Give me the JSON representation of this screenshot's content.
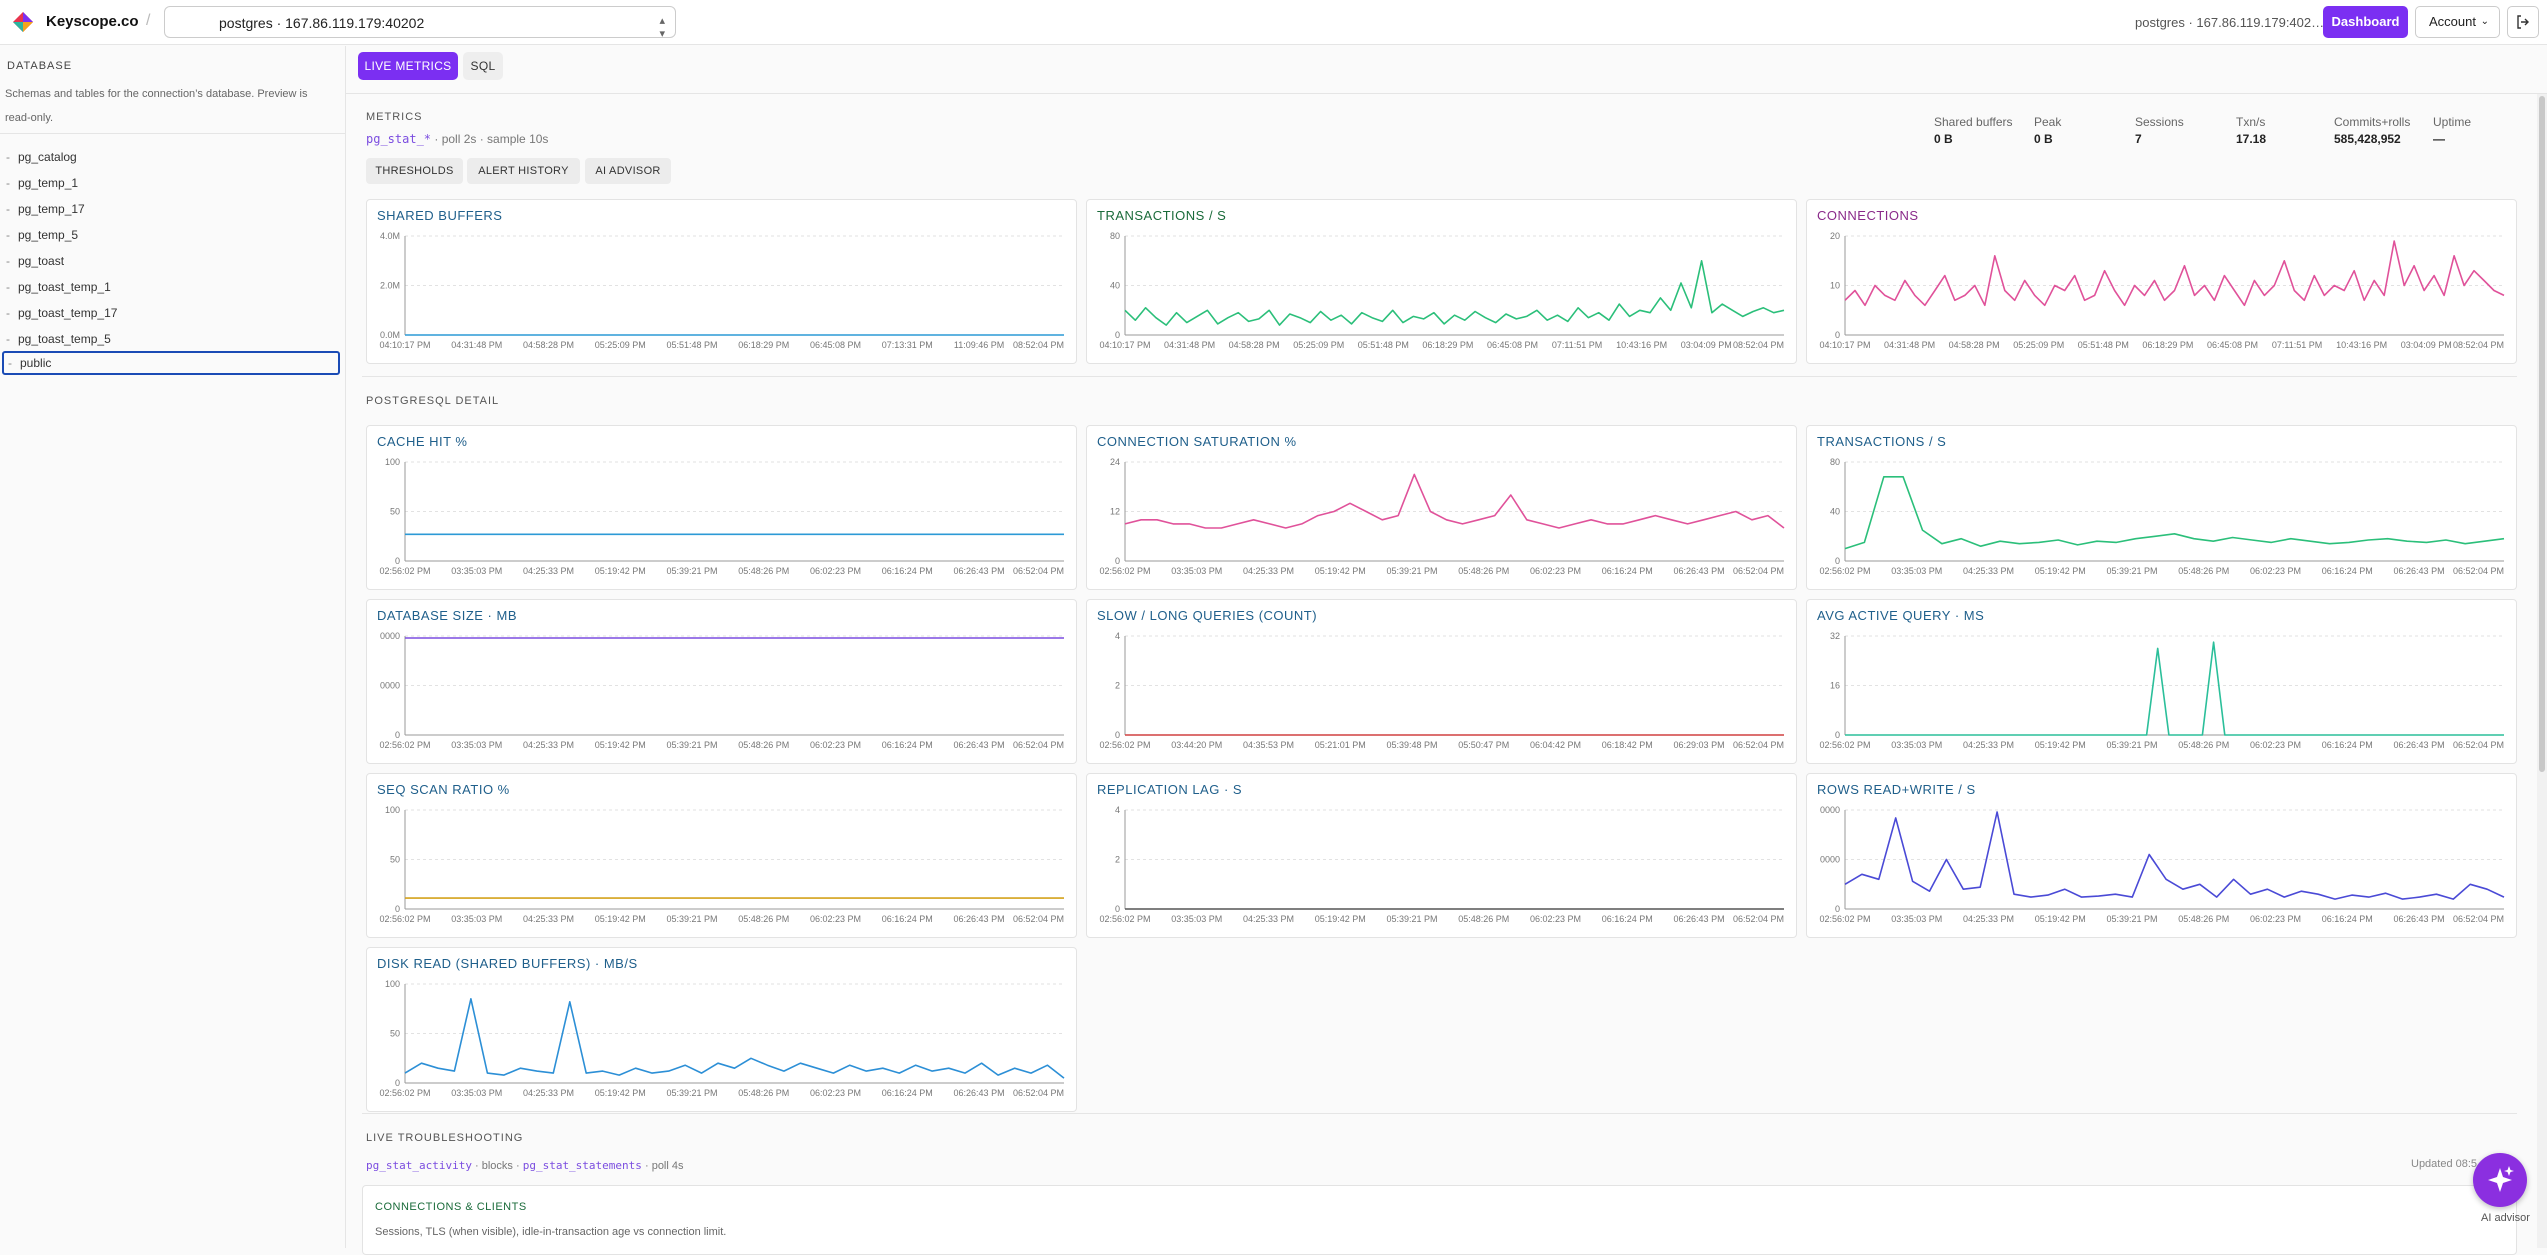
{
  "header": {
    "brand": "Keyscope.co",
    "separator": "/",
    "connection_value": "postgres · 167.86.119.179:40202",
    "connection_info": "postgres · 167.86.119.179:402…",
    "dashboard_label": "Dashboard",
    "account_label": "Account"
  },
  "sidebar": {
    "title": "DATABASE",
    "description": "Schemas and tables for the connection’s database. Preview is read-only.",
    "items": [
      {
        "label": "pg_catalog"
      },
      {
        "label": "pg_temp_1"
      },
      {
        "label": "pg_temp_17"
      },
      {
        "label": "pg_temp_5"
      },
      {
        "label": "pg_toast"
      },
      {
        "label": "pg_toast_temp_1"
      },
      {
        "label": "pg_toast_temp_17"
      },
      {
        "label": "pg_toast_temp_5"
      },
      {
        "label": "public",
        "selected": true
      }
    ]
  },
  "tabs": {
    "live": "LIVE METRICS",
    "sql": "SQL"
  },
  "metrics": {
    "title": "METRICS",
    "source_link": "pg_stat_*",
    "source_rest": " · poll 2s · sample 10s",
    "buttons": [
      "THRESHOLDS",
      "ALERT HISTORY",
      "AI ADVISOR"
    ],
    "stats": [
      {
        "label": "Shared buffers",
        "value": "0 B"
      },
      {
        "label": "Peak",
        "value": "0 B"
      },
      {
        "label": "Sessions",
        "value": "7"
      },
      {
        "label": "Txn/s",
        "value": "17.18"
      },
      {
        "label": "Commits+rolls",
        "value": "585,428,952"
      },
      {
        "label": "Uptime",
        "value": "—"
      }
    ]
  },
  "detail_title": "POSTGRESQL DETAIL",
  "troubleshooting": {
    "title": "LIVE TROUBLESHOOTING",
    "link1": "pg_stat_activity",
    "mid": " · blocks · ",
    "link2": "pg_stat_statements",
    "rest": " · poll 4s",
    "updated": "Updated 08:5…",
    "card_title": "CONNECTIONS & CLIENTS",
    "card_desc": "Sessions, TLS (when visible), idle-in-transaction age vs connection limit."
  },
  "ai_advisor_label": "AI advisor",
  "colors": {
    "accent": "#7b2ff2",
    "title_blue": "#1f5f8b",
    "title_green": "#1a6b3a",
    "title_purple": "#8a2a8a"
  },
  "chart_data": [
    {
      "type": "line",
      "title": "SHARED BUFFERS",
      "color": "#2c9ad6",
      "yticks": [
        "4.0M",
        "2.0M",
        "0.0M"
      ],
      "ylim": [
        0,
        4000000
      ],
      "xticks": [
        "04:10:17 PM",
        "04:31:48 PM",
        "04:58:28 PM",
        "05:25:09 PM",
        "05:51:48 PM",
        "06:18:29 PM",
        "06:45:08 PM",
        "07:13:31 PM",
        "11:09:46 PM",
        "08:52:04 PM"
      ],
      "values": [
        0,
        0,
        0,
        0,
        0,
        0,
        0,
        0,
        0,
        0,
        0,
        0,
        0,
        0,
        0,
        0,
        0,
        0,
        0,
        0
      ]
    },
    {
      "type": "line",
      "title": "TRANSACTIONS / S",
      "color": "#2bbf7a",
      "yticks": [
        "80",
        "40",
        "0"
      ],
      "ylim": [
        0,
        80
      ],
      "xticks": [
        "04:10:17 PM",
        "04:31:48 PM",
        "04:58:28 PM",
        "05:25:09 PM",
        "05:51:48 PM",
        "06:18:29 PM",
        "06:45:08 PM",
        "07:11:51 PM",
        "10:43:16 PM",
        "03:04:09 PM",
        "08:52:04 PM"
      ],
      "values": [
        20,
        12,
        22,
        14,
        8,
        18,
        10,
        15,
        20,
        9,
        14,
        18,
        11,
        13,
        20,
        8,
        17,
        14,
        10,
        19,
        12,
        16,
        9,
        18,
        14,
        11,
        20,
        10,
        15,
        13,
        18,
        9,
        16,
        12,
        19,
        14,
        10,
        17,
        13,
        15,
        20,
        12,
        16,
        11,
        22,
        14,
        18,
        12,
        25,
        15,
        20,
        18,
        30,
        20,
        42,
        22,
        60,
        18,
        25,
        20,
        15,
        19,
        22,
        18,
        20
      ]
    },
    {
      "type": "line",
      "title": "CONNECTIONS",
      "color": "#e0529a",
      "yticks": [
        "20",
        "10",
        "0"
      ],
      "ylim": [
        0,
        20
      ],
      "xticks": [
        "04:10:17 PM",
        "04:31:48 PM",
        "04:58:28 PM",
        "05:25:09 PM",
        "05:51:48 PM",
        "06:18:29 PM",
        "06:45:08 PM",
        "07:11:51 PM",
        "10:43:16 PM",
        "03:04:09 PM",
        "08:52:04 PM"
      ],
      "values": [
        7,
        9,
        6,
        10,
        8,
        7,
        11,
        8,
        6,
        9,
        12,
        7,
        8,
        10,
        6,
        16,
        9,
        7,
        11,
        8,
        6,
        10,
        9,
        12,
        7,
        8,
        13,
        9,
        6,
        10,
        8,
        11,
        7,
        9,
        14,
        8,
        10,
        7,
        12,
        9,
        6,
        11,
        8,
        10,
        15,
        9,
        7,
        12,
        8,
        10,
        9,
        13,
        7,
        11,
        8,
        19,
        10,
        14,
        9,
        12,
        8,
        16,
        10,
        13,
        11,
        9,
        8
      ]
    },
    {
      "type": "line",
      "title": "CACHE HIT %",
      "color": "#2c9ad6",
      "yticks": [
        "100",
        "50",
        "0"
      ],
      "ylim": [
        0,
        100
      ],
      "xticks": [
        "02:56:02 PM",
        "03:35:03 PM",
        "04:25:33 PM",
        "05:19:42 PM",
        "05:39:21 PM",
        "05:48:26 PM",
        "06:02:23 PM",
        "06:16:24 PM",
        "06:26:43 PM",
        "06:52:04 PM"
      ],
      "values": [
        27,
        27,
        27,
        27,
        27,
        27,
        27,
        27,
        27,
        27,
        27,
        27,
        27,
        27,
        27,
        27,
        27,
        27,
        27,
        27
      ]
    },
    {
      "type": "line",
      "title": "CONNECTION SATURATION %",
      "color": "#e0529a",
      "yticks": [
        "24",
        "12",
        "0"
      ],
      "ylim": [
        0,
        24
      ],
      "xticks": [
        "02:56:02 PM",
        "03:35:03 PM",
        "04:25:33 PM",
        "05:19:42 PM",
        "05:39:21 PM",
        "05:48:26 PM",
        "06:02:23 PM",
        "06:16:24 PM",
        "06:26:43 PM",
        "06:52:04 PM"
      ],
      "values": [
        9,
        10,
        10,
        9,
        9,
        8,
        8,
        9,
        10,
        9,
        8,
        9,
        11,
        12,
        14,
        12,
        10,
        11,
        21,
        12,
        10,
        9,
        10,
        11,
        16,
        10,
        9,
        8,
        9,
        10,
        9,
        9,
        10,
        11,
        10,
        9,
        10,
        11,
        12,
        10,
        11,
        8
      ]
    },
    {
      "type": "line",
      "title": "TRANSACTIONS / S",
      "color": "#2bbf7a",
      "yticks": [
        "80",
        "40",
        "0"
      ],
      "ylim": [
        0,
        80
      ],
      "xticks": [
        "02:56:02 PM",
        "03:35:03 PM",
        "04:25:33 PM",
        "05:19:42 PM",
        "05:39:21 PM",
        "05:48:26 PM",
        "06:02:23 PM",
        "06:16:24 PM",
        "06:26:43 PM",
        "06:52:04 PM"
      ],
      "values": [
        10,
        15,
        68,
        68,
        25,
        14,
        18,
        12,
        16,
        14,
        15,
        17,
        13,
        16,
        15,
        18,
        20,
        22,
        18,
        16,
        19,
        17,
        15,
        18,
        16,
        14,
        15,
        17,
        18,
        16,
        15,
        17,
        14,
        16,
        18
      ]
    },
    {
      "type": "line",
      "title": "DATABASE SIZE · MB",
      "color": "#7b4de0",
      "yticks": [
        "0000",
        "0000",
        "0"
      ],
      "ylim": [
        0,
        100
      ],
      "xticks": [
        "02:56:02 PM",
        "03:35:03 PM",
        "04:25:33 PM",
        "05:19:42 PM",
        "05:39:21 PM",
        "05:48:26 PM",
        "06:02:23 PM",
        "06:16:24 PM",
        "06:26:43 PM",
        "06:52:04 PM"
      ],
      "values": [
        98,
        98,
        98,
        98,
        98,
        98,
        98,
        98,
        98,
        98,
        98,
        98,
        98,
        98,
        98,
        98,
        98,
        98,
        98,
        98
      ]
    },
    {
      "type": "line",
      "title": "SLOW / LONG QUERIES (COUNT)",
      "color": "#d04040",
      "yticks": [
        "4",
        "2",
        "0"
      ],
      "ylim": [
        0,
        4
      ],
      "xticks": [
        "02:56:02 PM",
        "03:44:20 PM",
        "04:35:53 PM",
        "05:21:01 PM",
        "05:39:48 PM",
        "05:50:47 PM",
        "06:04:42 PM",
        "06:18:42 PM",
        "06:29:03 PM",
        "06:52:04 PM"
      ],
      "values": [
        0,
        0,
        0,
        0,
        0,
        0,
        0,
        0,
        0,
        0,
        0,
        0,
        0,
        0,
        0,
        0,
        0,
        0,
        0,
        0
      ]
    },
    {
      "type": "line",
      "title": "AVG ACTIVE QUERY · MS",
      "color": "#2bbf9a",
      "yticks": [
        "32",
        "16",
        "0"
      ],
      "ylim": [
        0,
        32
      ],
      "xticks": [
        "02:56:02 PM",
        "03:35:03 PM",
        "04:25:33 PM",
        "05:19:42 PM",
        "05:39:21 PM",
        "05:48:26 PM",
        "06:02:23 PM",
        "06:16:24 PM",
        "06:26:43 PM",
        "06:52:04 PM"
      ],
      "values": [
        0,
        0,
        0,
        0,
        0,
        0,
        0,
        0,
        0,
        0,
        0,
        0,
        0,
        0,
        0,
        0,
        0,
        0,
        0,
        0,
        0,
        0,
        0,
        0,
        0,
        0,
        0,
        0,
        28,
        0,
        0,
        0,
        0,
        30,
        0,
        0,
        0,
        0,
        0,
        0,
        0,
        0,
        0,
        0,
        0,
        0,
        0,
        0,
        0,
        0,
        0,
        0,
        0,
        0,
        0,
        0,
        0,
        0,
        0,
        0
      ]
    },
    {
      "type": "line",
      "title": "SEQ SCAN RATIO %",
      "color": "#d4a21c",
      "yticks": [
        "100",
        "50",
        "0"
      ],
      "ylim": [
        0,
        100
      ],
      "xticks": [
        "02:56:02 PM",
        "03:35:03 PM",
        "04:25:33 PM",
        "05:19:42 PM",
        "05:39:21 PM",
        "05:48:26 PM",
        "06:02:23 PM",
        "06:16:24 PM",
        "06:26:43 PM",
        "06:52:04 PM"
      ],
      "values": [
        11,
        11,
        11,
        11,
        11,
        11,
        11,
        11,
        11,
        11,
        11,
        11,
        11,
        11,
        11,
        11,
        11,
        11,
        11,
        11
      ]
    },
    {
      "type": "line",
      "title": "REPLICATION LAG · S",
      "color": "#555555",
      "yticks": [
        "4",
        "2",
        "0"
      ],
      "ylim": [
        0,
        4
      ],
      "xticks": [
        "02:56:02 PM",
        "03:35:03 PM",
        "04:25:33 PM",
        "05:19:42 PM",
        "05:39:21 PM",
        "05:48:26 PM",
        "06:02:23 PM",
        "06:16:24 PM",
        "06:26:43 PM",
        "06:52:04 PM"
      ],
      "values": [
        0,
        0,
        0,
        0,
        0,
        0,
        0,
        0,
        0,
        0,
        0,
        0,
        0,
        0,
        0,
        0,
        0,
        0,
        0,
        0
      ]
    },
    {
      "type": "line",
      "title": "ROWS READ+WRITE / S",
      "color": "#4a4ad6",
      "yticks": [
        "0000",
        "0000",
        "0"
      ],
      "ylim": [
        0,
        100
      ],
      "xticks": [
        "02:56:02 PM",
        "03:35:03 PM",
        "04:25:33 PM",
        "05:19:42 PM",
        "05:39:21 PM",
        "05:48:26 PM",
        "06:02:23 PM",
        "06:16:24 PM",
        "06:26:43 PM",
        "06:52:04 PM"
      ],
      "values": [
        25,
        35,
        30,
        92,
        28,
        18,
        50,
        20,
        22,
        98,
        15,
        12,
        14,
        20,
        12,
        13,
        15,
        12,
        55,
        30,
        20,
        25,
        12,
        30,
        15,
        20,
        12,
        18,
        15,
        10,
        14,
        12,
        16,
        10,
        12,
        15,
        10,
        25,
        20,
        12
      ]
    },
    {
      "type": "line",
      "title": "DISK READ (SHARED BUFFERS) · MB/S",
      "color": "#2c8fd6",
      "yticks": [
        "100",
        "50",
        "0"
      ],
      "ylim": [
        0,
        100
      ],
      "xticks": [
        "02:56:02 PM",
        "03:35:03 PM",
        "04:25:33 PM",
        "05:19:42 PM",
        "05:39:21 PM",
        "05:48:26 PM",
        "06:02:23 PM",
        "06:16:24 PM",
        "06:26:43 PM",
        "06:52:04 PM"
      ],
      "values": [
        10,
        20,
        15,
        12,
        85,
        10,
        8,
        15,
        12,
        10,
        82,
        10,
        12,
        8,
        15,
        10,
        12,
        18,
        10,
        20,
        15,
        25,
        18,
        12,
        20,
        15,
        10,
        18,
        12,
        15,
        10,
        18,
        12,
        15,
        10,
        20,
        8,
        15,
        10,
        18,
        5
      ]
    }
  ]
}
